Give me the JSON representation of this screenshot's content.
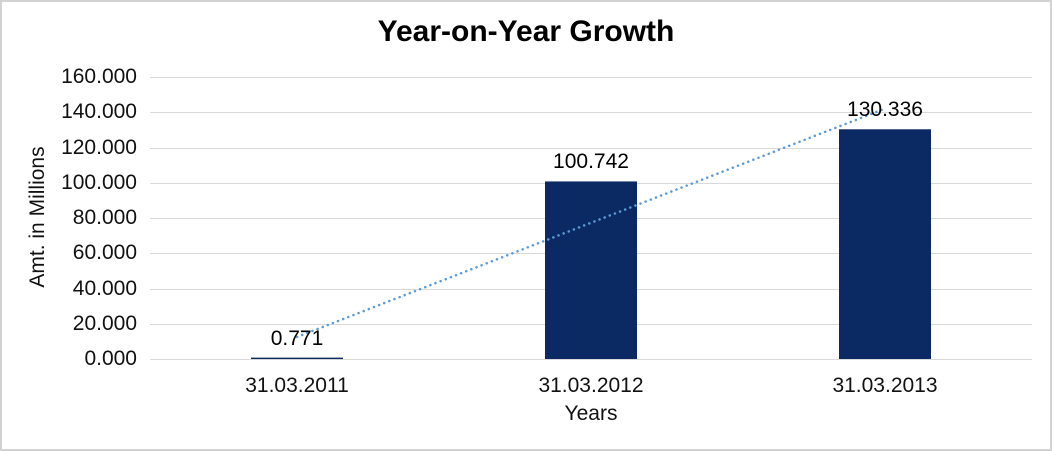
{
  "window": {
    "background": "#FFFFFF",
    "frame_border_color": "#D2D2D2"
  },
  "chart_data": {
    "type": "bar",
    "title": "Year-on-Year Growth",
    "categories": [
      "31.03.2011",
      "31.03.2012",
      "31.03.2013"
    ],
    "values": [
      0.771,
      100.742,
      130.336
    ],
    "value_labels": [
      "0.771",
      "100.742",
      "130.336"
    ],
    "xlabel": "Years",
    "ylabel": "Amt. in Millions",
    "ylim": [
      0,
      160
    ],
    "ytick_step": 20,
    "ytick_labels": [
      "0.000",
      "20.000",
      "40.000",
      "60.000",
      "80.000",
      "100.000",
      "120.000",
      "140.000",
      "160.000"
    ],
    "grid": true,
    "legend_position": "none",
    "bar_color": "#0B2A63",
    "grid_color": "#D9D9D9",
    "axis_text_color": "#111111",
    "trendline": {
      "type": "linear",
      "style": "dotted",
      "color": "#5B9BD5"
    }
  }
}
